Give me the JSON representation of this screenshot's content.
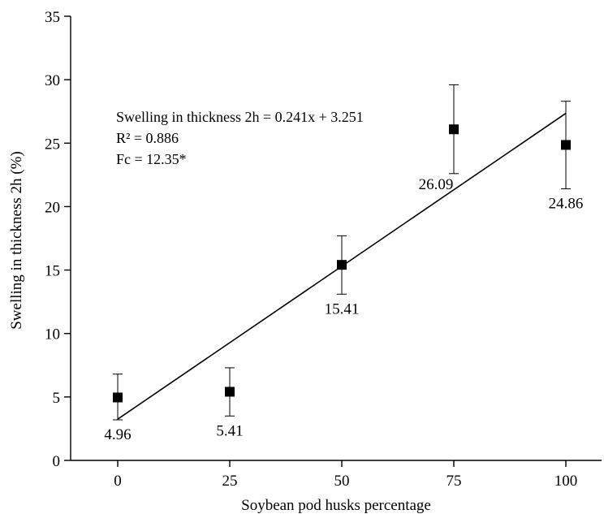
{
  "chart_data": {
    "type": "scatter",
    "xlabel": "Soybean pod husks percentage",
    "ylabel": "Swelling in thickness 2h (%)",
    "xlim": [
      -15,
      115
    ],
    "ylim": [
      0,
      35
    ],
    "x_ticks": [
      0,
      25,
      50,
      75,
      100
    ],
    "y_ticks": [
      0,
      5,
      10,
      15,
      20,
      25,
      30,
      35
    ],
    "grid": false,
    "points": [
      {
        "x": 0,
        "y": 4.96,
        "err_low": 3.2,
        "err_high": 6.8,
        "label": "4.96",
        "label_pos": "below"
      },
      {
        "x": 25,
        "y": 5.41,
        "err_low": 3.5,
        "err_high": 7.3,
        "label": "5.41",
        "label_pos": "below"
      },
      {
        "x": 50,
        "y": 15.41,
        "err_low": 13.1,
        "err_high": 17.7,
        "label": "15.41",
        "label_pos": "below"
      },
      {
        "x": 75,
        "y": 26.09,
        "err_low": 22.6,
        "err_high": 29.6,
        "label": "26.09",
        "label_pos": "below-left"
      },
      {
        "x": 100,
        "y": 24.86,
        "err_low": 21.4,
        "err_high": 28.3,
        "label": "24.86",
        "label_pos": "below"
      }
    ],
    "trendline": {
      "slope": 0.241,
      "intercept": 3.251,
      "x_range": [
        0,
        100
      ]
    },
    "annotations": [
      "Swelling in thickness 2h = 0.241x + 3.251",
      "R² = 0.886",
      "Fc = 12.35*"
    ]
  }
}
